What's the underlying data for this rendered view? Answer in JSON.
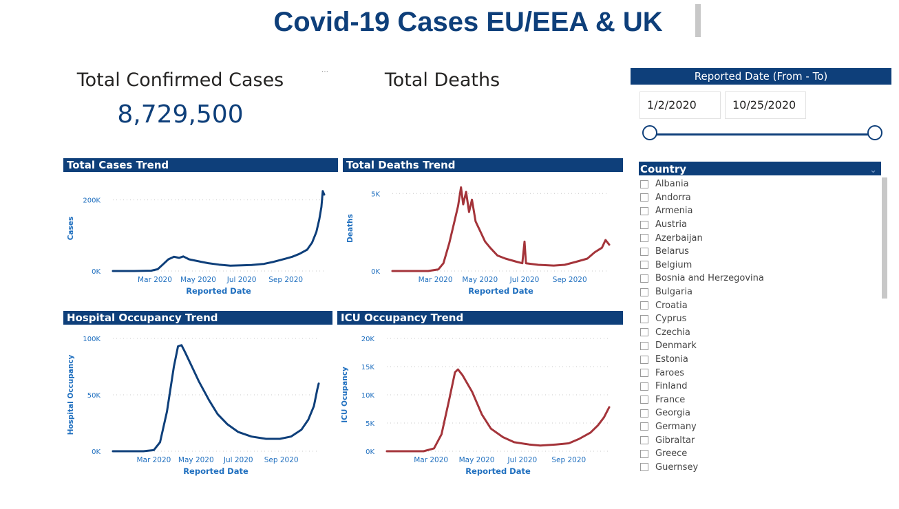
{
  "title": "Covid-19 Cases EU/EEA & UK",
  "kpis": {
    "cases_label": "Total Confirmed Cases",
    "cases_value": "8,729,500",
    "deaths_label": "Total Deaths"
  },
  "date_slicer": {
    "header": "Reported Date (From - To)",
    "from": "1/2/2020",
    "to": "10/25/2020"
  },
  "country_slicer": {
    "header": "Country",
    "items": [
      "Albania",
      "Andorra",
      "Armenia",
      "Austria",
      "Azerbaijan",
      "Belarus",
      "Belgium",
      "Bosnia and Herzegovina",
      "Bulgaria",
      "Croatia",
      "Cyprus",
      "Czechia",
      "Denmark",
      "Estonia",
      "Faroes",
      "Finland",
      "France",
      "Georgia",
      "Germany",
      "Gibraltar",
      "Greece",
      "Guernsey"
    ]
  },
  "colors": {
    "navy": "#0e3f7a",
    "blue_line": "#0e3f7a",
    "red_line": "#a4343a",
    "axis_label": "#1f6fbf"
  },
  "chart_data": [
    {
      "id": "cases",
      "type": "line",
      "title": "Total Cases Trend",
      "xlabel": "Reported Date",
      "ylabel": "Cases",
      "xticks": [
        "Mar 2020",
        "May 2020",
        "Jul 2020",
        "Sep 2020"
      ],
      "yticks": [
        "0K",
        "200K"
      ],
      "ytick_values": [
        0,
        200000
      ],
      "ylim": [
        0,
        240000
      ],
      "color": "#0e3f7a",
      "points": [
        [
          "2020-01-02",
          0
        ],
        [
          "2020-02-01",
          0
        ],
        [
          "2020-02-25",
          1000
        ],
        [
          "2020-03-05",
          5000
        ],
        [
          "2020-03-12",
          18000
        ],
        [
          "2020-03-20",
          33000
        ],
        [
          "2020-03-28",
          40000
        ],
        [
          "2020-04-04",
          37000
        ],
        [
          "2020-04-10",
          41000
        ],
        [
          "2020-04-18",
          33000
        ],
        [
          "2020-04-25",
          30000
        ],
        [
          "2020-05-05",
          26000
        ],
        [
          "2020-05-15",
          22000
        ],
        [
          "2020-05-30",
          18000
        ],
        [
          "2020-06-15",
          15000
        ],
        [
          "2020-07-01",
          16000
        ],
        [
          "2020-07-15",
          17000
        ],
        [
          "2020-08-01",
          20000
        ],
        [
          "2020-08-15",
          26000
        ],
        [
          "2020-09-01",
          35000
        ],
        [
          "2020-09-10",
          40000
        ],
        [
          "2020-09-20",
          48000
        ],
        [
          "2020-10-01",
          60000
        ],
        [
          "2020-10-08",
          80000
        ],
        [
          "2020-10-14",
          110000
        ],
        [
          "2020-10-18",
          145000
        ],
        [
          "2020-10-21",
          180000
        ],
        [
          "2020-10-23",
          225000
        ],
        [
          "2020-10-25",
          215000
        ]
      ]
    },
    {
      "id": "deaths",
      "type": "line",
      "title": "Total Deaths Trend",
      "xlabel": "Reported Date",
      "ylabel": "Deaths",
      "xticks": [
        "Mar 2020",
        "May 2020",
        "Jul 2020",
        "Sep 2020"
      ],
      "yticks": [
        "0K",
        "5K"
      ],
      "ytick_values": [
        0,
        5000
      ],
      "ylim": [
        0,
        5500
      ],
      "color": "#a4343a",
      "points": [
        [
          "2020-01-02",
          0
        ],
        [
          "2020-02-20",
          0
        ],
        [
          "2020-03-05",
          100
        ],
        [
          "2020-03-12",
          500
        ],
        [
          "2020-03-20",
          1800
        ],
        [
          "2020-03-27",
          3200
        ],
        [
          "2020-04-01",
          4200
        ],
        [
          "2020-04-05",
          5400
        ],
        [
          "2020-04-08",
          4300
        ],
        [
          "2020-04-12",
          5100
        ],
        [
          "2020-04-16",
          3800
        ],
        [
          "2020-04-20",
          4600
        ],
        [
          "2020-04-25",
          3200
        ],
        [
          "2020-05-01",
          2600
        ],
        [
          "2020-05-08",
          1900
        ],
        [
          "2020-05-15",
          1500
        ],
        [
          "2020-05-25",
          1000
        ],
        [
          "2020-06-05",
          800
        ],
        [
          "2020-06-20",
          600
        ],
        [
          "2020-06-28",
          500
        ],
        [
          "2020-07-01",
          1900
        ],
        [
          "2020-07-03",
          500
        ],
        [
          "2020-07-20",
          400
        ],
        [
          "2020-08-10",
          350
        ],
        [
          "2020-08-25",
          400
        ],
        [
          "2020-09-10",
          600
        ],
        [
          "2020-09-25",
          800
        ],
        [
          "2020-10-05",
          1200
        ],
        [
          "2020-10-15",
          1500
        ],
        [
          "2020-10-20",
          2000
        ],
        [
          "2020-10-25",
          1700
        ]
      ]
    },
    {
      "id": "hospital",
      "type": "line",
      "title": "Hospital Occupancy Trend",
      "xlabel": "Reported Date",
      "ylabel": "Hospital Occupancy",
      "xticks": [
        "Mar 2020",
        "May 2020",
        "Jul 2020",
        "Sep 2020"
      ],
      "yticks": [
        "0K",
        "50K",
        "100K"
      ],
      "ytick_values": [
        0,
        50000,
        100000
      ],
      "ylim": [
        0,
        100000
      ],
      "color": "#0e3f7a",
      "points": [
        [
          "2020-01-02",
          0
        ],
        [
          "2020-02-15",
          0
        ],
        [
          "2020-03-01",
          1000
        ],
        [
          "2020-03-10",
          8000
        ],
        [
          "2020-03-20",
          35000
        ],
        [
          "2020-03-30",
          75000
        ],
        [
          "2020-04-05",
          93000
        ],
        [
          "2020-04-10",
          94000
        ],
        [
          "2020-04-15",
          88000
        ],
        [
          "2020-04-25",
          75000
        ],
        [
          "2020-05-05",
          62000
        ],
        [
          "2020-05-20",
          45000
        ],
        [
          "2020-06-01",
          33000
        ],
        [
          "2020-06-15",
          24000
        ],
        [
          "2020-07-01",
          17000
        ],
        [
          "2020-07-20",
          13000
        ],
        [
          "2020-08-10",
          11000
        ],
        [
          "2020-08-30",
          11000
        ],
        [
          "2020-09-15",
          13000
        ],
        [
          "2020-09-30",
          19000
        ],
        [
          "2020-10-10",
          28000
        ],
        [
          "2020-10-18",
          40000
        ],
        [
          "2020-10-23",
          55000
        ],
        [
          "2020-10-25",
          60000
        ]
      ]
    },
    {
      "id": "icu",
      "type": "line",
      "title": "ICU Occupancy Trend",
      "xlabel": "Reported Date",
      "ylabel": "ICU Ocupancy",
      "xticks": [
        "Mar 2020",
        "May 2020",
        "Jul 2020",
        "Sep 2020"
      ],
      "yticks": [
        "0K",
        "5K",
        "10K",
        "15K",
        "20K"
      ],
      "ytick_values": [
        0,
        5000,
        10000,
        15000,
        20000
      ],
      "ylim": [
        0,
        20000
      ],
      "color": "#a4343a",
      "points": [
        [
          "2020-01-02",
          0
        ],
        [
          "2020-02-20",
          0
        ],
        [
          "2020-03-05",
          500
        ],
        [
          "2020-03-15",
          3000
        ],
        [
          "2020-03-25",
          9000
        ],
        [
          "2020-04-02",
          14000
        ],
        [
          "2020-04-06",
          14500
        ],
        [
          "2020-04-12",
          13500
        ],
        [
          "2020-04-25",
          10500
        ],
        [
          "2020-05-08",
          6500
        ],
        [
          "2020-05-20",
          4000
        ],
        [
          "2020-06-05",
          2500
        ],
        [
          "2020-06-20",
          1600
        ],
        [
          "2020-07-10",
          1200
        ],
        [
          "2020-07-25",
          1000
        ],
        [
          "2020-08-15",
          1200
        ],
        [
          "2020-09-01",
          1400
        ],
        [
          "2020-09-15",
          2200
        ],
        [
          "2020-09-30",
          3300
        ],
        [
          "2020-10-10",
          4600
        ],
        [
          "2020-10-18",
          6000
        ],
        [
          "2020-10-25",
          7800
        ]
      ]
    }
  ]
}
